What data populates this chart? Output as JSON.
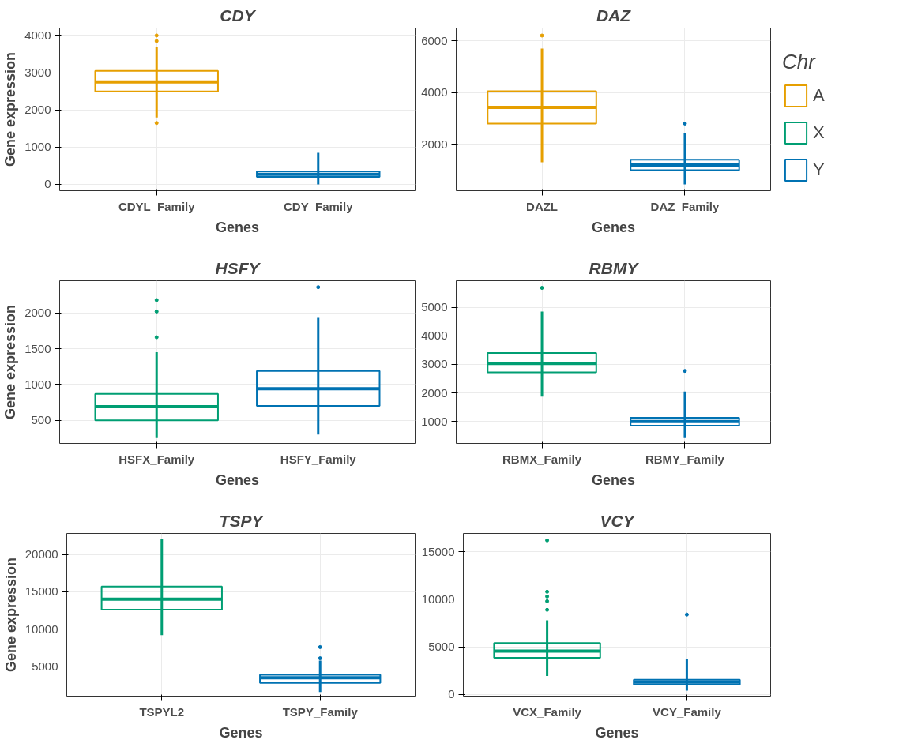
{
  "chart_data": [
    {
      "type": "box",
      "title": "CDY",
      "xlabel": "Genes",
      "ylabel": "Gene expression",
      "categories": [
        "CDYL_Family",
        "CDY_Family"
      ],
      "ylim": [
        -170,
        4200
      ],
      "yticks": [
        0,
        1000,
        2000,
        3000,
        4000
      ],
      "grid": true,
      "series": [
        {
          "color": "#e69f00",
          "boxes": [
            {
              "low": 1800,
              "q1": 2500,
              "median": 2750,
              "q3": 3050,
              "high": 3700,
              "outliers": [
                1650,
                3850,
                4000
              ]
            },
            null
          ]
        },
        {
          "color": "#0072b2",
          "boxes": [
            null,
            {
              "low": 0,
              "q1": 200,
              "median": 270,
              "q3": 350,
              "high": 850
            }
          ]
        }
      ]
    },
    {
      "type": "box",
      "title": "DAZ",
      "xlabel": "Genes",
      "categories": [
        "DAZL",
        "DAZ_Family"
      ],
      "ylim": [
        205,
        6490
      ],
      "yticks": [
        2000,
        4000,
        6000
      ],
      "grid": true,
      "series": [
        {
          "color": "#e69f00",
          "boxes": [
            {
              "low": 1300,
              "q1": 2800,
              "median": 3420,
              "q3": 4050,
              "high": 5700,
              "outliers": [
                6200
              ]
            },
            null
          ]
        },
        {
          "color": "#0072b2",
          "boxes": [
            null,
            {
              "low": 450,
              "q1": 1000,
              "median": 1200,
              "q3": 1400,
              "high": 2450,
              "outliers": [
                2800
              ]
            }
          ]
        }
      ]
    },
    {
      "type": "box",
      "title": "HSFY",
      "xlabel": "Genes",
      "ylabel": "Gene expression",
      "categories": [
        "HSFX_Family",
        "HSFY_Family"
      ],
      "ylim": [
        176,
        2450
      ],
      "yticks": [
        500,
        1000,
        1500,
        2000
      ],
      "grid": true,
      "series": [
        {
          "color": "#009e73",
          "boxes": [
            {
              "low": 250,
              "q1": 500,
              "median": 690,
              "q3": 870,
              "high": 1450,
              "outliers": [
                1660,
                2020,
                2180
              ]
            },
            null
          ]
        },
        {
          "color": "#0072b2",
          "boxes": [
            null,
            {
              "low": 300,
              "q1": 700,
              "median": 940,
              "q3": 1190,
              "high": 1930,
              "outliers": [
                2360
              ]
            }
          ]
        }
      ]
    },
    {
      "type": "box",
      "title": "RBMY",
      "xlabel": "Genes",
      "categories": [
        "RBMX_Family",
        "RBMY_Family"
      ],
      "ylim": [
        230,
        5930
      ],
      "yticks": [
        1000,
        2000,
        3000,
        4000,
        5000
      ],
      "grid": true,
      "series": [
        {
          "color": "#009e73",
          "boxes": [
            {
              "low": 1870,
              "q1": 2720,
              "median": 3030,
              "q3": 3400,
              "high": 4850,
              "outliers": [
                5680
              ]
            },
            null
          ]
        },
        {
          "color": "#0072b2",
          "boxes": [
            null,
            {
              "low": 420,
              "q1": 850,
              "median": 1000,
              "q3": 1130,
              "high": 2050,
              "outliers": [
                2770
              ]
            }
          ]
        }
      ]
    },
    {
      "type": "box",
      "title": "TSPY",
      "xlabel": "Genes",
      "ylabel": "Gene expression",
      "categories": [
        "TSPYL2",
        "TSPY_Family"
      ],
      "ylim": [
        1040,
        22800
      ],
      "yticks": [
        5000,
        10000,
        15000,
        20000
      ],
      "grid": true,
      "series": [
        {
          "color": "#009e73",
          "boxes": [
            {
              "low": 9200,
              "q1": 12600,
              "median": 14000,
              "q3": 15700,
              "high": 22000
            },
            null
          ]
        },
        {
          "color": "#0072b2",
          "boxes": [
            null,
            {
              "low": 1600,
              "q1": 2800,
              "median": 3500,
              "q3": 3900,
              "high": 5800,
              "outliers": [
                6100,
                7600
              ]
            }
          ]
        }
      ]
    },
    {
      "type": "box",
      "title": "VCY",
      "xlabel": "Genes",
      "categories": [
        "VCX_Family",
        "VCY_Family"
      ],
      "ylim": [
        -175,
        16930
      ],
      "yticks": [
        0,
        5000,
        10000,
        15000
      ],
      "grid": true,
      "series": [
        {
          "color": "#009e73",
          "boxes": [
            {
              "low": 1950,
              "q1": 3850,
              "median": 4550,
              "q3": 5400,
              "high": 7800,
              "outliers": [
                8900,
                9800,
                10300,
                10800,
                16200
              ]
            },
            null
          ]
        },
        {
          "color": "#0072b2",
          "boxes": [
            null,
            {
              "low": 400,
              "q1": 1050,
              "median": 1300,
              "q3": 1550,
              "high": 3700,
              "outliers": [
                8400
              ]
            }
          ]
        }
      ]
    },
    {
      "type": "other",
      "legend_title": "Chr",
      "legend": "right",
      "series": [
        {
          "name": "A",
          "color": "#e69f00"
        },
        {
          "name": "X",
          "color": "#009e73"
        },
        {
          "name": "Y",
          "color": "#0072b2"
        }
      ]
    }
  ]
}
